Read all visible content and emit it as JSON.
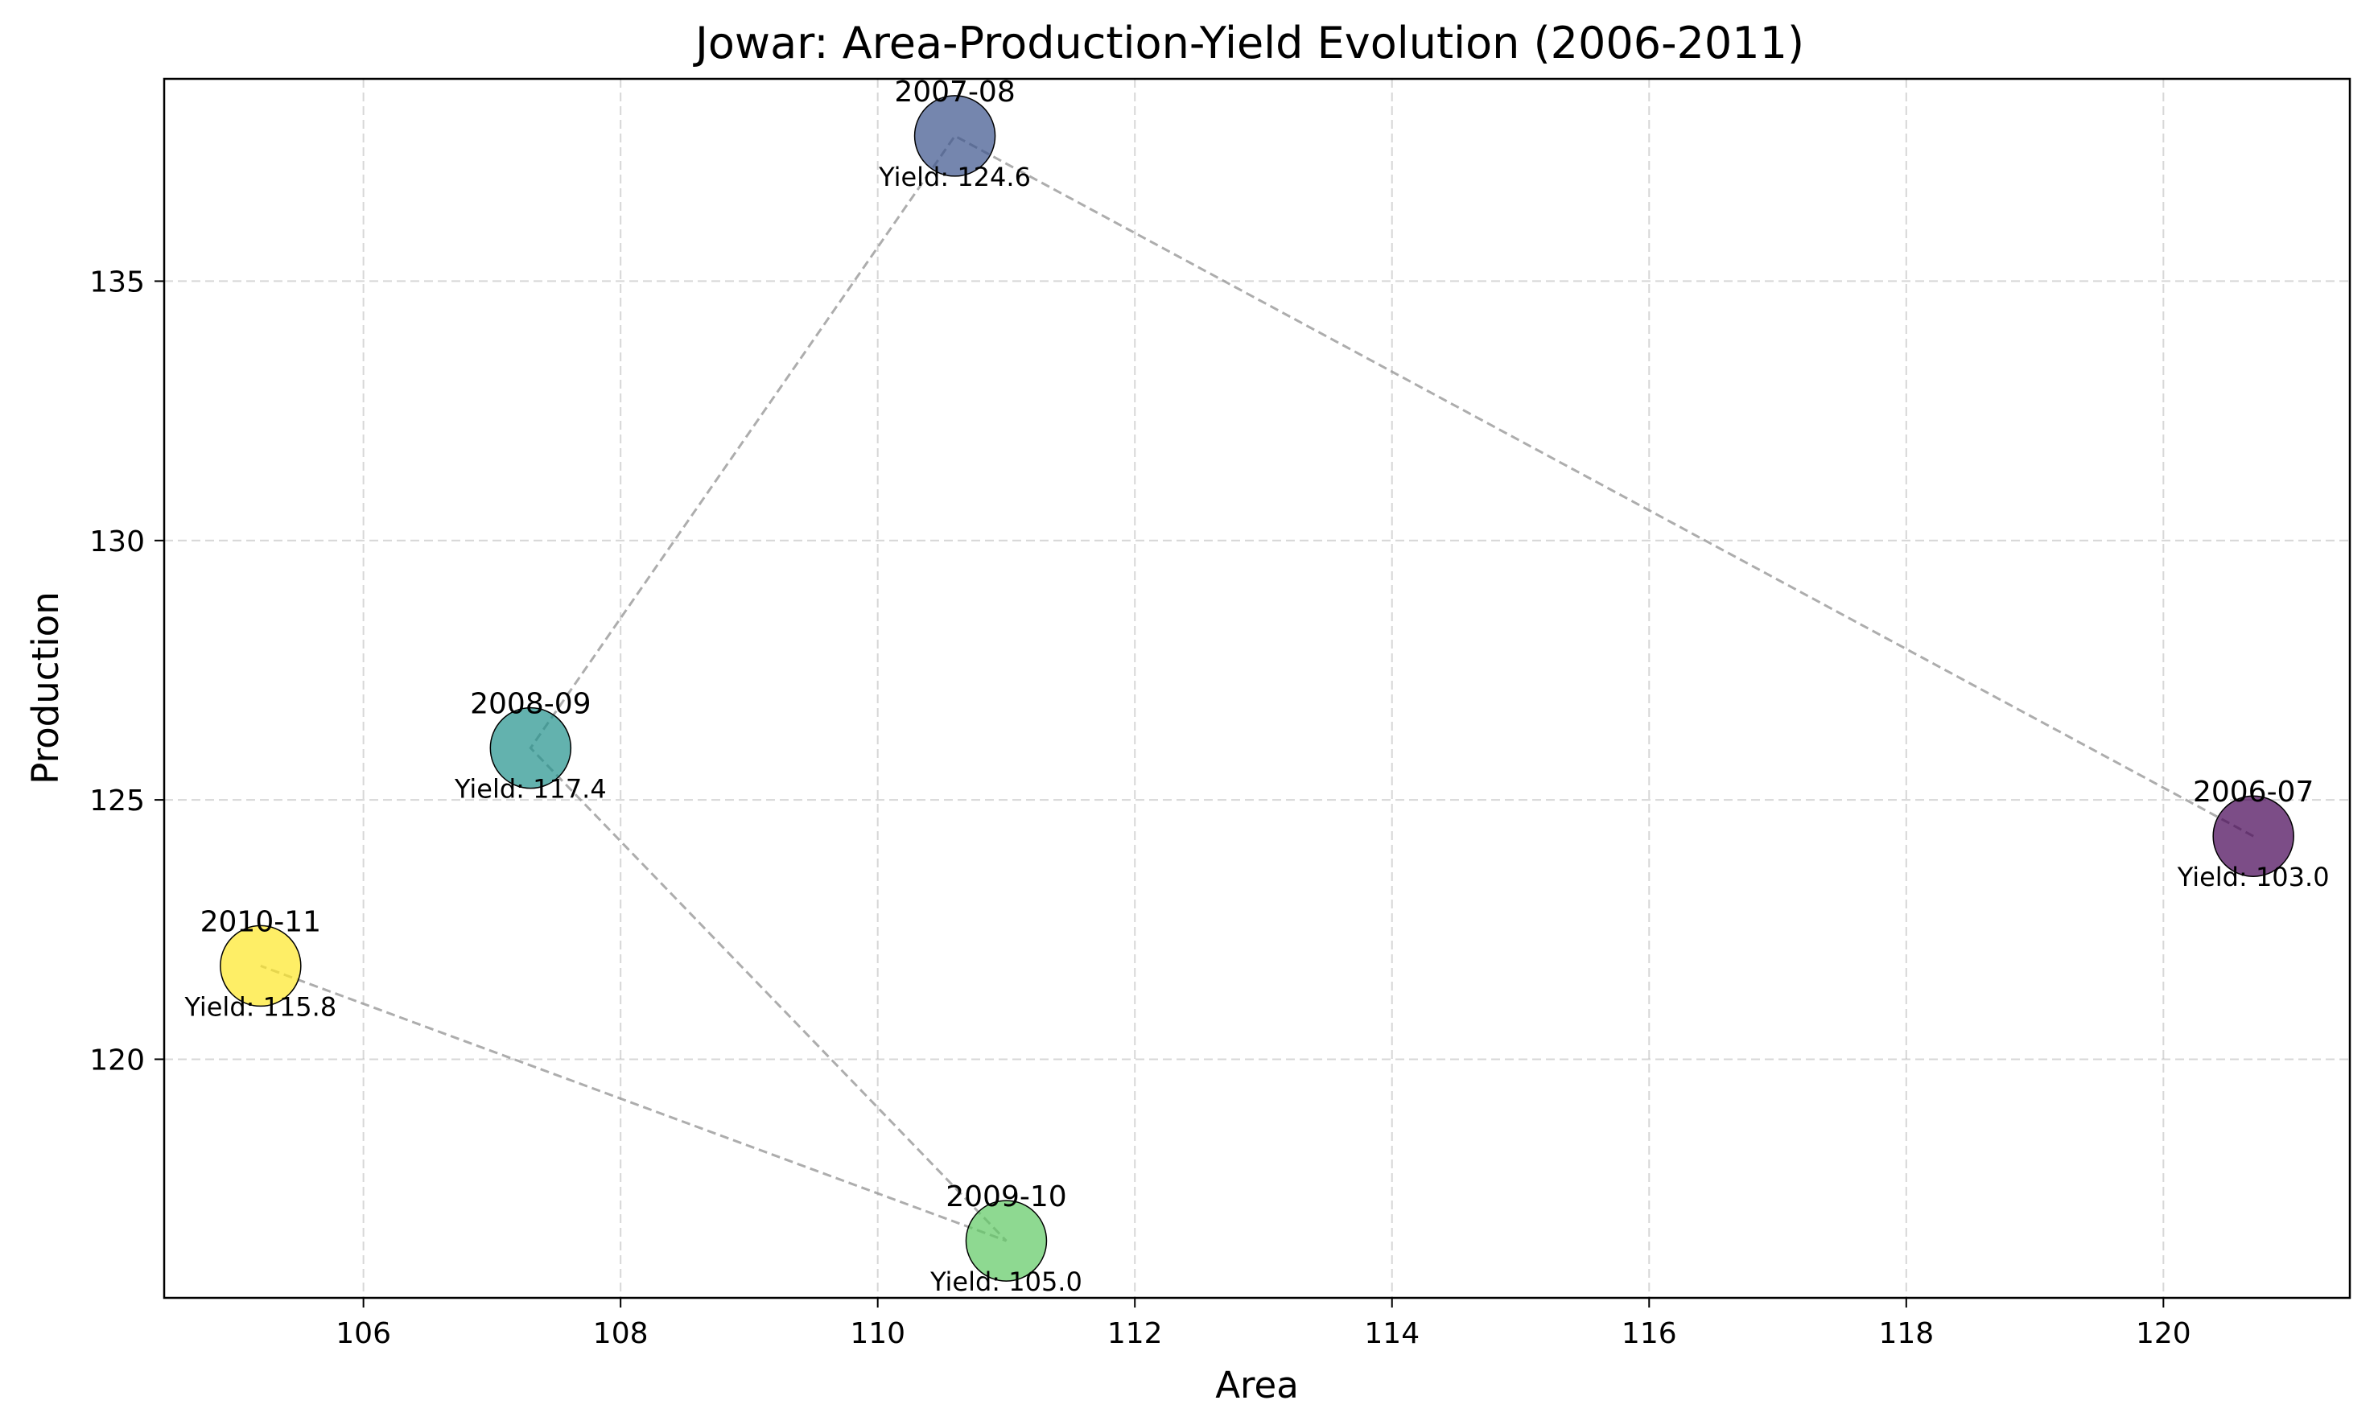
{
  "chart_data": {
    "type": "scatter",
    "title": "Jowar: Area-Production-Yield Evolution (2006-2011)",
    "xlabel": "Area",
    "ylabel": "Production",
    "xlim": [
      104.45,
      121.45
    ],
    "ylim": [
      115.4,
      138.9
    ],
    "xticks": [
      106,
      108,
      110,
      112,
      114,
      116,
      118,
      120
    ],
    "yticks": [
      120,
      125,
      130,
      135
    ],
    "grid": true,
    "colors": [
      "#440154",
      "#3b528b",
      "#21918c",
      "#5ec962",
      "#fde725"
    ],
    "line_color": "#999999",
    "points": [
      {
        "label": "2006-07",
        "x": 120.7,
        "y": 124.3,
        "yield": 103.0,
        "yield_text": "Yield: 103.0"
      },
      {
        "label": "2007-08",
        "x": 110.6,
        "y": 137.8,
        "yield": 124.6,
        "yield_text": "Yield: 124.6"
      },
      {
        "label": "2008-09",
        "x": 107.3,
        "y": 126.0,
        "yield": 117.4,
        "yield_text": "Yield: 117.4"
      },
      {
        "label": "2009-10",
        "x": 111.0,
        "y": 116.5,
        "yield": 105.0,
        "yield_text": "Yield: 105.0"
      },
      {
        "label": "2010-11",
        "x": 105.2,
        "y": 121.8,
        "yield": 115.8,
        "yield_text": "Yield: 115.8"
      }
    ]
  }
}
